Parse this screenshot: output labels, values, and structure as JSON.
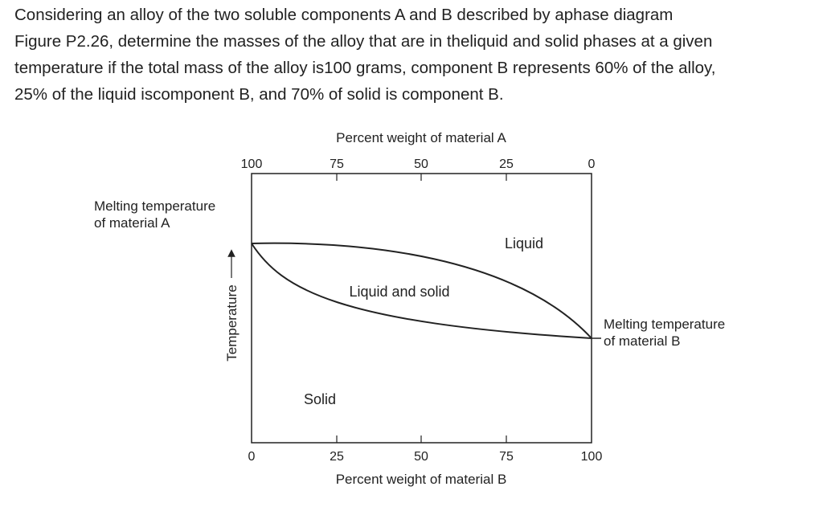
{
  "question": {
    "lines": [
      "Considering an alloy of the two soluble components A and B described by aphase diagram",
      "Figure P2.26, determine the masses of the alloy that are in theliquid and solid phases at a given",
      "temperature if the total mass of the alloy is100 grams, component B represents 60% of the alloy,",
      "25% of the liquid iscomponent B, and 70% of solid is component B."
    ]
  },
  "diagram": {
    "top_axis_title": "Percent weight of material A",
    "top_ticks": [
      "100",
      "75",
      "50",
      "25",
      "0"
    ],
    "bottom_axis_title": "Percent weight of material B",
    "bottom_ticks": [
      "0",
      "25",
      "50",
      "75",
      "100"
    ],
    "y_axis_label": "Temperature",
    "melting_a": [
      "Melting temperature",
      "of material A"
    ],
    "melting_b": [
      "Melting temperature",
      "of material B"
    ],
    "regions": {
      "liquid": "Liquid",
      "two_phase": "Liquid and solid",
      "solid": "Solid"
    }
  }
}
